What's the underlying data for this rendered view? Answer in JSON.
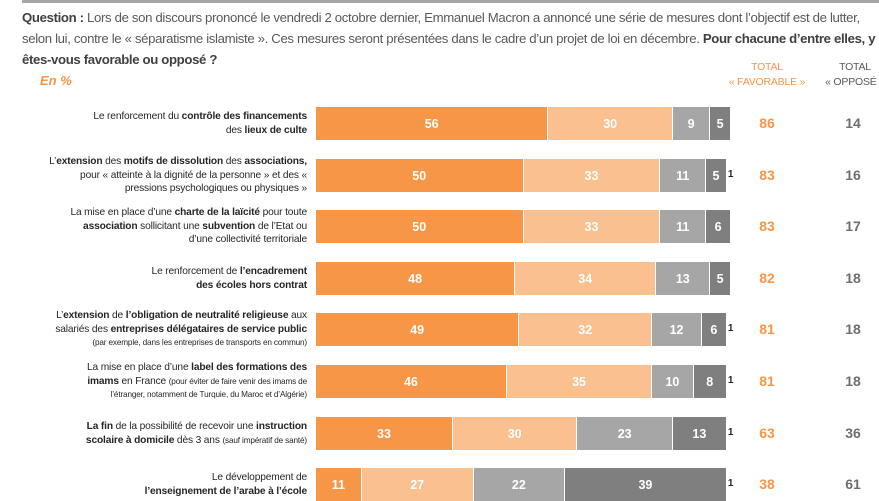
{
  "header": {
    "question_label": "Question :",
    "question_text": " Lors de son discours prononcé le vendredi 2 octobre dernier, Emmanuel Macron a annoncé une série de mesures dont l’objectif est de lutter, selon lui, contre le « séparatisme islamiste ». Ces mesures seront présentées dans le cadre d’un projet de loi en décembre. ",
    "question_bold": "Pour chacune d’entre elles, y êtes-vous favorable ou opposé ?",
    "unit": "En %",
    "total_favorable": [
      "TOTAL",
      "« FAVORABLE »"
    ],
    "total_oppose": [
      "TOTAL",
      "« OPPOSÉ »"
    ]
  },
  "colors": {
    "tres_favorable": "#f79646",
    "plutot_favorable": "#fac090",
    "plutot_oppose": "#a6a6a6",
    "tres_oppose": "#7f7f7f"
  },
  "chart_data": {
    "type": "bar",
    "orientation": "horizontal",
    "stacked": true,
    "xlim": [
      0,
      100
    ],
    "categories": [
      "Le renforcement du contrôle des financements des lieux de culte",
      "L’extension des motifs de dissolution des associations, pour « atteinte à la dignité de la personne » et des « pressions psychologiques ou physiques »",
      "La mise en place d’une charte de la laïcité pour toute association sollicitant une subvention de l’Etat ou d’une collectivité territoriale",
      "Le renforcement de l’encadrement des écoles hors contrat",
      "L’extension de l’obligation de neutralité religieuse aux salariés des entreprises délégataires de service public (par exemple, dans les entreprises de transports en commun)",
      "La mise en place d’une label des formations des imams en France (pour éviter de faire venir des imams de l’étranger, notamment de Turquie, du Maroc et d’Algérie)",
      "La fin de la possibilité de recevoir une instruction scolaire à domicile dès 3 ans (sauf impératif de santé)",
      "Le développement de l’enseignement de l’arabe à l’école"
    ],
    "series": [
      {
        "values": [
          56,
          50,
          50,
          48,
          49,
          46,
          33,
          11
        ]
      },
      {
        "values": [
          30,
          33,
          33,
          34,
          32,
          35,
          30,
          27
        ]
      },
      {
        "values": [
          9,
          11,
          11,
          13,
          12,
          10,
          23,
          22
        ]
      },
      {
        "values": [
          5,
          5,
          6,
          5,
          6,
          8,
          13,
          39
        ]
      }
    ],
    "no_answer": [
      null,
      1,
      null,
      null,
      1,
      1,
      1,
      1
    ],
    "total_favorable": [
      86,
      83,
      83,
      82,
      81,
      81,
      63,
      38
    ],
    "total_oppose": [
      14,
      16,
      17,
      18,
      18,
      18,
      36,
      61
    ]
  },
  "labels": [
    [
      [
        [
          "Le renforcement du ",
          0
        ],
        [
          "contrôle des financements",
          1
        ]
      ],
      [
        [
          "des ",
          0
        ],
        [
          "lieux de culte",
          1
        ]
      ]
    ],
    [
      [
        [
          "L’",
          0
        ],
        [
          "extension",
          1
        ],
        [
          " des ",
          0
        ],
        [
          "motifs de dissolution",
          1
        ],
        [
          " des ",
          0
        ],
        [
          "associations,",
          1
        ]
      ],
      [
        [
          "pour « atteinte à la dignité de la personne » et des «",
          0
        ]
      ],
      [
        [
          "pressions psychologiques ou physiques »",
          0
        ]
      ]
    ],
    [
      [
        [
          "La mise en place d’une ",
          0
        ],
        [
          "charte de la laïcité",
          1
        ],
        [
          " pour toute",
          0
        ]
      ],
      [
        [
          "association",
          1
        ],
        [
          " sollicitant une ",
          0
        ],
        [
          "subvention",
          1
        ],
        [
          " de l’Etat ou",
          0
        ]
      ],
      [
        [
          "d’une collectivité territoriale",
          0
        ]
      ]
    ],
    [
      [
        [
          "Le renforcement de ",
          0
        ],
        [
          "l’encadrement",
          1
        ]
      ],
      [
        [
          "des écoles hors contrat",
          1
        ]
      ]
    ],
    [
      [
        [
          "L’",
          0
        ],
        [
          "extension",
          1
        ],
        [
          " de ",
          0
        ],
        [
          "l’obligation de neutralité religieuse",
          1
        ],
        [
          " aux",
          0
        ]
      ],
      [
        [
          "salariés des ",
          0
        ],
        [
          "entreprises délégataires de service public",
          1
        ]
      ],
      [
        [
          "(par exemple, dans les entreprises de transports en commun)",
          2
        ]
      ]
    ],
    [
      [
        [
          "La mise en place d’une ",
          0
        ],
        [
          "label des formations des",
          1
        ]
      ],
      [
        [
          "imams",
          1
        ],
        [
          " en France ",
          0
        ],
        [
          "(pour éviter de faire venir des imams de",
          2
        ]
      ],
      [
        [
          "l’étranger, notamment de Turquie, du Maroc et d’Algérie)",
          2
        ]
      ]
    ],
    [
      [
        [
          "La fin",
          1
        ],
        [
          " de la possibilité de recevoir une ",
          0
        ],
        [
          "instruction",
          1
        ]
      ],
      [
        [
          "scolaire à domicile",
          1
        ],
        [
          " dès 3 ans ",
          0
        ],
        [
          "(sauf impératif de santé)",
          2
        ]
      ]
    ],
    [
      [
        [
          "Le développement de",
          0
        ]
      ],
      [
        [
          "l’enseignement de l’arabe à l’école",
          1
        ]
      ]
    ]
  ]
}
